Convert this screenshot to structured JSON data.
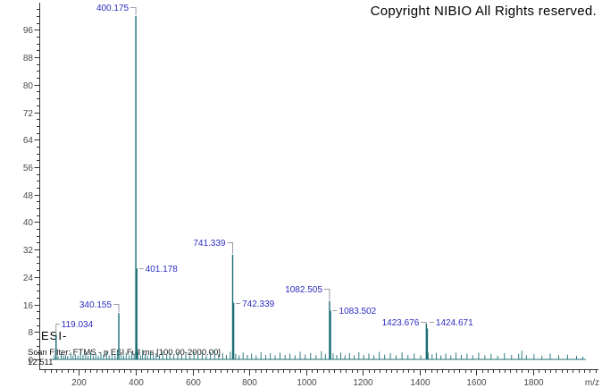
{
  "texts": {
    "copyright": "Copyright NIBIO All Rights reserved.",
    "esi_mode": "ESI-",
    "scan_filter": "Scan Filter: FTMS - p ESI Full ms [100.00-2000.00]",
    "retention_time": "12.511"
  },
  "colors": {
    "background": "#ffffff",
    "spectrum": "#1b6e74",
    "peak_label": "#2b2bc0",
    "connector": "#9a9aa8",
    "axis": "#333333",
    "tick_label": "#4a4a4a",
    "text": "#000000"
  },
  "chart_data": {
    "type": "bar",
    "subtype": "mass-spectrum-stick-plot",
    "title": "",
    "xlabel": "m/z",
    "ylabel": "",
    "xlim": [
      60,
      2030
    ],
    "ylim": [
      0,
      104
    ],
    "scan_range": [
      100.0,
      2000.0
    ],
    "x_major_ticks": [
      200,
      400,
      600,
      800,
      1000,
      1200,
      1400,
      1600,
      1800
    ],
    "x_minor_step": 20,
    "y_major_ticks": [
      0,
      8,
      16,
      24,
      32,
      40,
      48,
      56,
      64,
      72,
      80,
      88,
      96
    ],
    "y_minor_step": 2,
    "grid": false,
    "legend": false,
    "peaks": [
      {
        "mz": 119.034,
        "intensity_pct": 7.3,
        "label": "119.034",
        "label_side": "right",
        "connector": "bracket",
        "label_pct": 10.4
      },
      {
        "mz": 340.155,
        "intensity_pct": 13.5,
        "label": "340.155",
        "label_side": "left",
        "connector": "bracket",
        "label_pct": 16.1
      },
      {
        "mz": 400.175,
        "intensity_pct": 100,
        "label": "400.175",
        "label_side": "left",
        "connector": "bracket",
        "label_pct": 102.6
      },
      {
        "mz": 401.178,
        "intensity_pct": 26.5,
        "label": "401.178",
        "label_side": "right",
        "connector": "dash",
        "label_pct": 26.5
      },
      {
        "mz": 741.339,
        "intensity_pct": 30.5,
        "label": "741.339",
        "label_side": "left",
        "connector": "bracket",
        "label_pct": 34.2
      },
      {
        "mz": 742.339,
        "intensity_pct": 16.5,
        "label": "742.339",
        "label_side": "right",
        "connector": "dash",
        "label_pct": 16.5
      },
      {
        "mz": 1082.505,
        "intensity_pct": 17.0,
        "label": "1082.505",
        "label_side": "left",
        "connector": "bracket",
        "label_pct": 20.6
      },
      {
        "mz": 1083.502,
        "intensity_pct": 14.2,
        "label": "1083.502",
        "label_side": "right",
        "connector": "dash",
        "label_pct": 14.2
      },
      {
        "mz": 1423.676,
        "intensity_pct": 10.5,
        "label": "1423.676",
        "label_side": "left",
        "connector": "bracket",
        "label_pct": 10.9
      },
      {
        "mz": 1424.671,
        "intensity_pct": 9.0,
        "label": "1424.671",
        "label_side": "right",
        "connector": "dash",
        "label_pct": 10.9
      }
    ],
    "noise": [
      [
        113,
        1.2
      ],
      [
        126,
        1.0
      ],
      [
        137,
        1.8
      ],
      [
        145,
        1.1
      ],
      [
        152,
        1.3
      ],
      [
        160,
        1.0
      ],
      [
        171,
        2.0
      ],
      [
        179,
        1.2
      ],
      [
        187,
        1.5
      ],
      [
        196,
        1.1
      ],
      [
        205,
        2.2
      ],
      [
        214,
        1.3
      ],
      [
        223,
        1.8
      ],
      [
        232,
        1.1
      ],
      [
        241,
        2.4
      ],
      [
        250,
        1.2
      ],
      [
        259,
        1.6
      ],
      [
        268,
        1.0
      ],
      [
        277,
        2.0
      ],
      [
        286,
        1.3
      ],
      [
        297,
        2.3
      ],
      [
        306,
        1.2
      ],
      [
        316,
        1.7
      ],
      [
        327,
        1.2
      ],
      [
        335,
        2.6
      ],
      [
        349,
        1.4
      ],
      [
        357,
        1.1
      ],
      [
        366,
        1.9
      ],
      [
        377,
        1.2
      ],
      [
        386,
        2.2
      ],
      [
        394,
        1.4
      ],
      [
        408,
        2.0
      ],
      [
        417,
        1.2
      ],
      [
        424,
        2.8
      ],
      [
        433,
        1.5
      ],
      [
        441,
        1.2
      ],
      [
        452,
        2.2
      ],
      [
        462,
        1.3
      ],
      [
        472,
        1.8
      ],
      [
        483,
        1.2
      ],
      [
        495,
        2.4
      ],
      [
        509,
        1.4
      ],
      [
        520,
        1.9
      ],
      [
        534,
        1.2
      ],
      [
        548,
        2.1
      ],
      [
        562,
        1.3
      ],
      [
        576,
        1.8
      ],
      [
        591,
        1.2
      ],
      [
        605,
        2.3
      ],
      [
        619,
        1.4
      ],
      [
        634,
        1.9
      ],
      [
        648,
        1.2
      ],
      [
        663,
        2.1
      ],
      [
        678,
        2.8
      ],
      [
        692,
        1.5
      ],
      [
        706,
        1.9
      ],
      [
        719,
        1.3
      ],
      [
        733,
        2.2
      ],
      [
        752,
        1.6
      ],
      [
        764,
        1.2
      ],
      [
        778,
        2.0
      ],
      [
        793,
        1.3
      ],
      [
        808,
        1.7
      ],
      [
        824,
        1.2
      ],
      [
        841,
        2.1
      ],
      [
        858,
        1.3
      ],
      [
        874,
        1.8
      ],
      [
        891,
        1.2
      ],
      [
        908,
        2.0
      ],
      [
        926,
        1.3
      ],
      [
        943,
        1.7
      ],
      [
        961,
        1.2
      ],
      [
        979,
        2.2
      ],
      [
        997,
        1.4
      ],
      [
        1016,
        1.8
      ],
      [
        1035,
        1.3
      ],
      [
        1054,
        2.4
      ],
      [
        1068,
        1.6
      ],
      [
        1085,
        3.5
      ],
      [
        1095,
        1.8
      ],
      [
        1108,
        1.3
      ],
      [
        1122,
        2.0
      ],
      [
        1137,
        1.2
      ],
      [
        1153,
        1.8
      ],
      [
        1169,
        1.2
      ],
      [
        1186,
        2.1
      ],
      [
        1203,
        1.3
      ],
      [
        1221,
        1.7
      ],
      [
        1239,
        1.2
      ],
      [
        1258,
        2.2
      ],
      [
        1277,
        1.4
      ],
      [
        1297,
        1.8
      ],
      [
        1317,
        1.2
      ],
      [
        1338,
        2.0
      ],
      [
        1359,
        1.3
      ],
      [
        1381,
        1.7
      ],
      [
        1404,
        1.2
      ],
      [
        1430,
        2.0
      ],
      [
        1444,
        1.5
      ],
      [
        1459,
        1.9
      ],
      [
        1475,
        1.2
      ],
      [
        1492,
        1.7
      ],
      [
        1510,
        1.2
      ],
      [
        1528,
        2.0
      ],
      [
        1547,
        1.3
      ],
      [
        1567,
        1.7
      ],
      [
        1587,
        1.2
      ],
      [
        1608,
        1.9
      ],
      [
        1630,
        1.2
      ],
      [
        1652,
        1.6
      ],
      [
        1675,
        1.1
      ],
      [
        1699,
        1.8
      ],
      [
        1724,
        1.3
      ],
      [
        1749,
        1.6
      ],
      [
        1760,
        2.6
      ],
      [
        1776,
        1.2
      ],
      [
        1803,
        1.5
      ],
      [
        1831,
        1.1
      ],
      [
        1860,
        1.7
      ],
      [
        1890,
        1.2
      ],
      [
        1921,
        1.4
      ],
      [
        1953,
        1.0
      ],
      [
        1975,
        0.8
      ]
    ]
  }
}
